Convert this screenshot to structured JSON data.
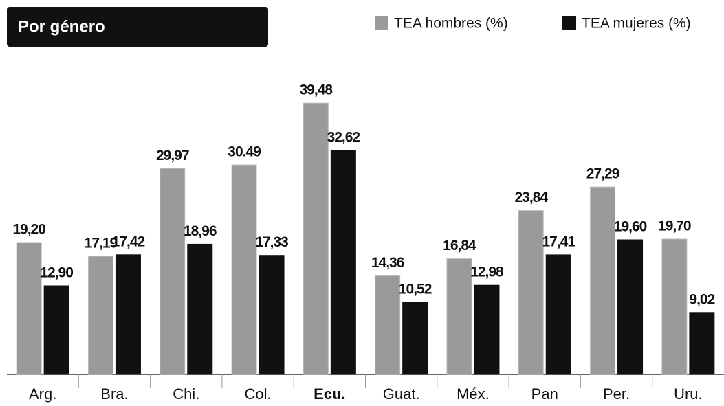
{
  "chart_data": {
    "type": "bar",
    "title": "Por género",
    "categories": [
      "Arg.",
      "Bra.",
      "Chi.",
      "Col.",
      "Ecu.",
      "Guat.",
      "Méx.",
      "Pan",
      "Per.",
      "Uru."
    ],
    "highlight_category": "Ecu.",
    "series": [
      {
        "name": "TEA hombres (%)",
        "color": "#9a9a9a",
        "values": [
          19.2,
          17.19,
          29.97,
          30.49,
          39.48,
          14.36,
          16.84,
          23.84,
          27.29,
          19.7
        ],
        "value_labels": [
          "19,20",
          "17,19",
          "29,97",
          "30.49",
          "39,48",
          "14,36",
          "16,84",
          "23,84",
          "27,29",
          "19,70"
        ]
      },
      {
        "name": "TEA mujeres (%)",
        "color": "#111111",
        "values": [
          12.9,
          17.42,
          18.96,
          17.33,
          32.62,
          10.52,
          12.98,
          17.41,
          19.6,
          9.02
        ],
        "value_labels": [
          "12,90",
          "17,42",
          "18,96",
          "17,33",
          "32,62",
          "10,52",
          "12,98",
          "17,41",
          "19,60",
          "9,02"
        ]
      }
    ]
  }
}
